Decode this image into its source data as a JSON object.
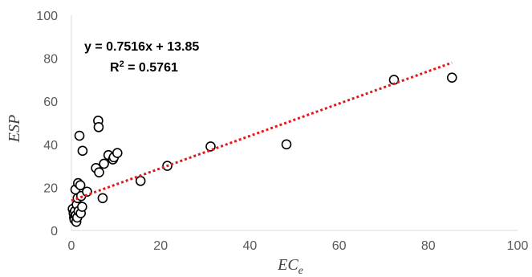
{
  "chart_data": {
    "type": "scatter",
    "xlabel": "EC",
    "xlabel_sub": "e",
    "ylabel": "ESP",
    "xlim": [
      0,
      100
    ],
    "ylim": [
      0,
      100
    ],
    "xticks": [
      0,
      20,
      40,
      60,
      80,
      100
    ],
    "yticks": [
      0,
      20,
      40,
      60,
      80,
      100
    ],
    "grid": false,
    "legend": "none",
    "annotations": {
      "equation": "y = 0.7516x + 13.85",
      "r2_prefix": "R",
      "r2_sup": "2",
      "r2_value": " = 0.5761"
    },
    "trendline": {
      "slope": 0.7516,
      "intercept": 13.85,
      "x_range": [
        0,
        85.3
      ],
      "color": "#e31a1c",
      "style": "dotted"
    },
    "marker": {
      "fill": "#ffffff",
      "stroke": "#000000"
    },
    "series": [
      {
        "points": [
          [
            0.3,
            10
          ],
          [
            0.5,
            8
          ],
          [
            0.6,
            6
          ],
          [
            0.7,
            5
          ],
          [
            0.8,
            9
          ],
          [
            0.9,
            19
          ],
          [
            1.0,
            7
          ],
          [
            1.1,
            4
          ],
          [
            1.2,
            12
          ],
          [
            1.3,
            6
          ],
          [
            1.4,
            15
          ],
          [
            1.5,
            22
          ],
          [
            1.6,
            9
          ],
          [
            1.8,
            44
          ],
          [
            2.0,
            21
          ],
          [
            2.1,
            8
          ],
          [
            2.2,
            16
          ],
          [
            2.4,
            11
          ],
          [
            2.5,
            37
          ],
          [
            3.5,
            18
          ],
          [
            5.5,
            29
          ],
          [
            6.0,
            51
          ],
          [
            6.1,
            48
          ],
          [
            6.2,
            27
          ],
          [
            7.0,
            15
          ],
          [
            7.3,
            31
          ],
          [
            8.3,
            35
          ],
          [
            9.3,
            33
          ],
          [
            9.5,
            34
          ],
          [
            10.3,
            36
          ],
          [
            15.5,
            23
          ],
          [
            21.5,
            30
          ],
          [
            31.2,
            39
          ],
          [
            48.2,
            40
          ],
          [
            72.3,
            70
          ],
          [
            85.3,
            71
          ]
        ]
      }
    ]
  }
}
